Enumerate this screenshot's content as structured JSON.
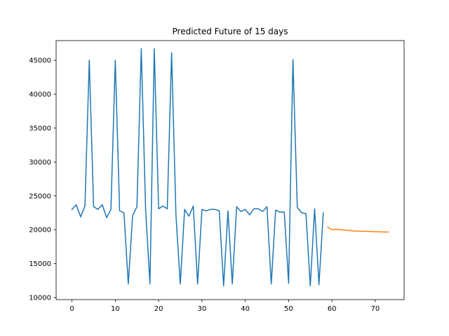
{
  "chart_data": {
    "type": "line",
    "title": "Predicted Future of 15 days",
    "xlabel": "",
    "ylabel": "",
    "xlim": [
      -3.65,
      76.65
    ],
    "ylim": [
      9700,
      47900
    ],
    "xticks": [
      0,
      10,
      20,
      30,
      40,
      50,
      60,
      70
    ],
    "yticks": [
      10000,
      15000,
      20000,
      25000,
      30000,
      35000,
      40000,
      45000
    ],
    "grid": false,
    "legend": "none",
    "series": [
      {
        "color": "#1f77b4",
        "x": [
          0,
          1,
          2,
          3,
          4,
          5,
          6,
          7,
          8,
          9,
          10,
          11,
          12,
          13,
          14,
          15,
          16,
          17,
          18,
          19,
          20,
          21,
          22,
          23,
          24,
          25,
          26,
          27,
          28,
          29,
          30,
          31,
          32,
          33,
          34,
          35,
          36,
          37,
          38,
          39,
          40,
          41,
          42,
          43,
          44,
          45,
          46,
          47,
          48,
          49,
          50,
          51,
          52,
          53,
          54,
          55,
          56,
          57,
          58
        ],
        "y": [
          23000,
          23700,
          21900,
          23500,
          45000,
          23400,
          23000,
          23700,
          21800,
          23000,
          45000,
          22800,
          22500,
          12000,
          22100,
          23400,
          46700,
          23000,
          12000,
          46700,
          23100,
          23500,
          23100,
          46100,
          22200,
          12000,
          23000,
          22000,
          23500,
          12000,
          23000,
          22800,
          23000,
          23000,
          22800,
          11700,
          22800,
          12000,
          23400,
          22700,
          23000,
          22200,
          23100,
          23100,
          22700,
          23400,
          12000,
          22900,
          22600,
          22600,
          12100,
          45100,
          23300,
          22500,
          22400,
          11700,
          23100,
          11900,
          22500
        ]
      },
      {
        "color": "#ff7f0e",
        "x": [
          59,
          60,
          61,
          62,
          63,
          64,
          65,
          66,
          67,
          68,
          69,
          70,
          71,
          72,
          73
        ],
        "y": [
          20400,
          20000,
          20100,
          20000,
          19950,
          19900,
          19820,
          19800,
          19780,
          19760,
          19740,
          19720,
          19700,
          19680,
          19660
        ]
      }
    ]
  }
}
